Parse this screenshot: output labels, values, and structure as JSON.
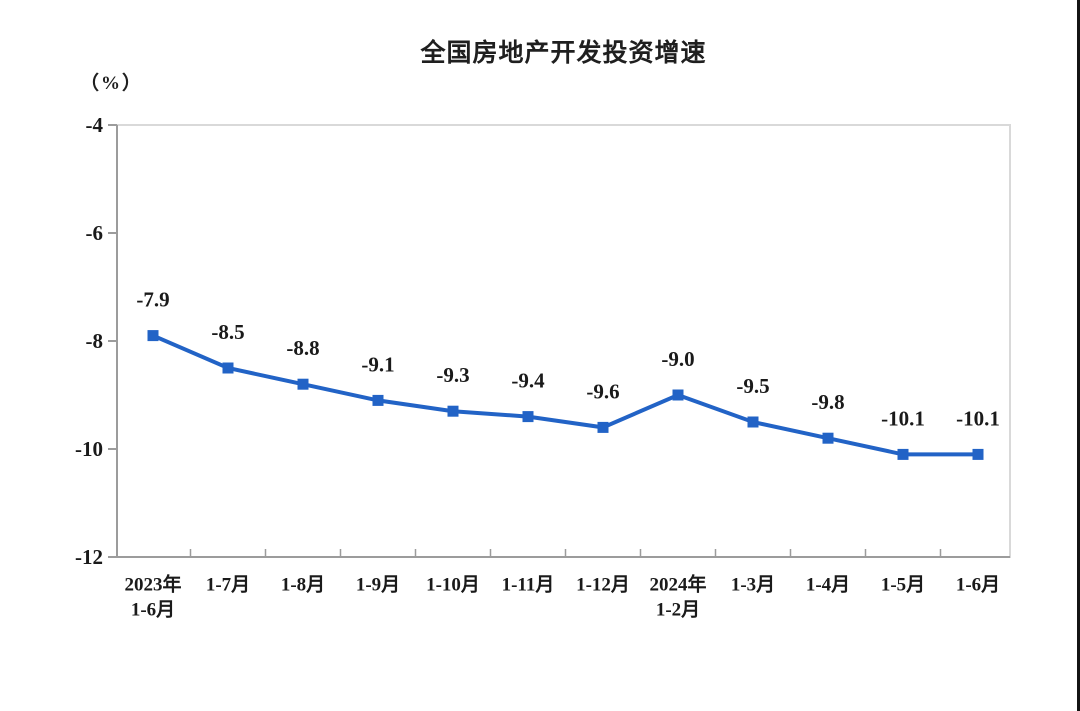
{
  "chart_data": {
    "type": "line",
    "title": "全国房地产开发投资增速",
    "unit_label": "（%）",
    "categories": [
      [
        "2023年",
        "1-6月"
      ],
      [
        "1-7月"
      ],
      [
        "1-8月"
      ],
      [
        "1-9月"
      ],
      [
        "1-10月"
      ],
      [
        "1-11月"
      ],
      [
        "1-12月"
      ],
      [
        "2024年",
        "1-2月"
      ],
      [
        "1-3月"
      ],
      [
        "1-4月"
      ],
      [
        "1-5月"
      ],
      [
        "1-6月"
      ]
    ],
    "values": [
      -7.9,
      -8.5,
      -8.8,
      -9.1,
      -9.3,
      -9.4,
      -9.6,
      -9.0,
      -9.5,
      -9.8,
      -10.1,
      -10.1
    ],
    "data_labels": [
      "-7.9",
      "-8.5",
      "-8.8",
      "-9.1",
      "-9.3",
      "-9.4",
      "-9.6",
      "-9.0",
      "-9.5",
      "-9.8",
      "-10.1",
      "-10.1"
    ],
    "y_ticks": [
      "-4",
      "-6",
      "-8",
      "-10",
      "-12"
    ],
    "ylim": [
      -12,
      -4
    ],
    "xlabel": "",
    "ylabel": "（%）",
    "grid": false,
    "legend": "none",
    "line_color": "#2263c6",
    "marker": "square",
    "label_color": "#1a1a1a",
    "axis_color": "#9c9c9c",
    "box_color": "#d9d9d9"
  }
}
